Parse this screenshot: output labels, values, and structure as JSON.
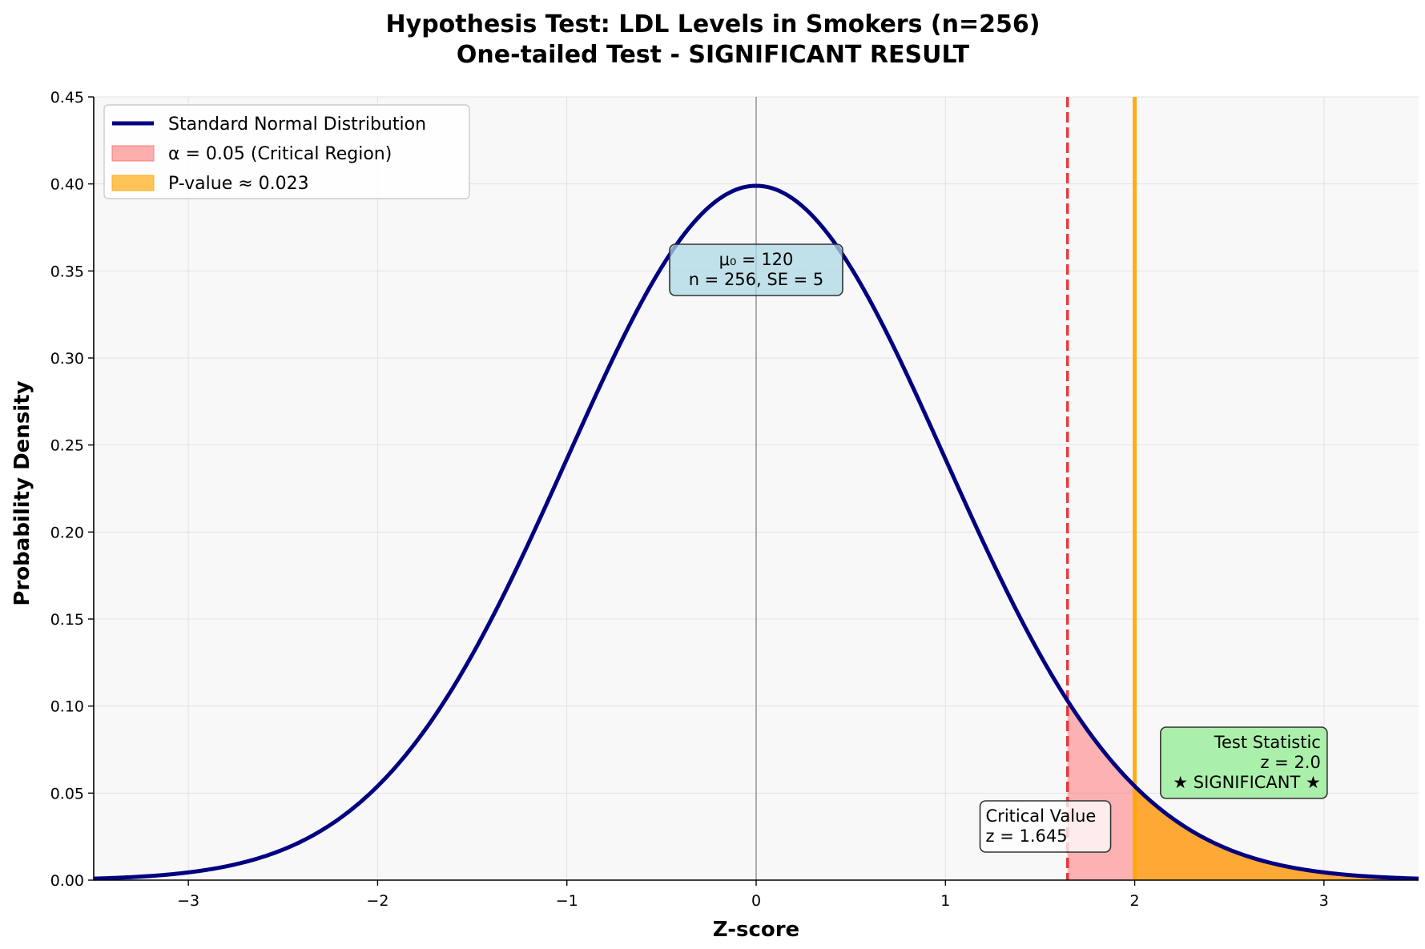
{
  "chart_data": {
    "type": "area",
    "title_lines": [
      "Hypothesis Test: LDL Levels in Smokers (n=256)",
      "One-tailed Test - SIGNIFICANT RESULT"
    ],
    "xlabel": "Z-score",
    "ylabel": "Probability Density",
    "xlim": [
      -3.5,
      3.5
    ],
    "ylim": [
      0,
      0.45
    ],
    "xticks": [
      -3,
      -2,
      -1,
      0,
      1,
      2,
      3
    ],
    "xtick_labels": [
      "−3",
      "−2",
      "−1",
      "0",
      "1",
      "2",
      "3"
    ],
    "yticks": [
      0.0,
      0.05,
      0.1,
      0.15,
      0.2,
      0.25,
      0.3,
      0.35,
      0.4,
      0.45
    ],
    "ytick_labels": [
      "0.00",
      "0.05",
      "0.10",
      "0.15",
      "0.20",
      "0.25",
      "0.30",
      "0.35",
      "0.40",
      "0.45"
    ],
    "grid": true,
    "legend_position": "top-left",
    "series": [
      {
        "name": "Standard Normal Distribution",
        "kind": "line",
        "function": "normal-pdf",
        "mean": 0,
        "sd": 1,
        "color": "#000080"
      },
      {
        "name": "α = 0.05 (Critical Region)",
        "kind": "area",
        "x_from": 1.645,
        "x_to": 3.5,
        "color": "#ff6b6b"
      },
      {
        "name": "P-value ≈ 0.023",
        "kind": "area",
        "x_from": 2.0,
        "x_to": 3.5,
        "color": "#ffa500"
      }
    ],
    "reference_lines": [
      {
        "x": 0,
        "style": "solid",
        "color": "#999999"
      },
      {
        "x": 1.645,
        "style": "dashed",
        "color": "#e41a1c"
      },
      {
        "x": 2.0,
        "style": "solid",
        "color": "#ffa500"
      }
    ],
    "annotations": [
      {
        "id": "mu",
        "lines": [
          "μ₀ = 120",
          "n = 256, SE = 5"
        ],
        "x": 0,
        "y": 0.35,
        "align": "center",
        "bg": "#add8e6"
      },
      {
        "id": "critical",
        "lines": [
          "Critical Value",
          "z = 1.645"
        ],
        "x": 1.2,
        "y": 0.03,
        "align": "left",
        "bg": "#ffffff"
      },
      {
        "id": "test",
        "lines": [
          "Test Statistic",
          "z = 2.0",
          "★ SIGNIFICANT ★"
        ],
        "x": 3.0,
        "y": 0.07,
        "align": "right",
        "bg": "#90ee90"
      }
    ]
  }
}
